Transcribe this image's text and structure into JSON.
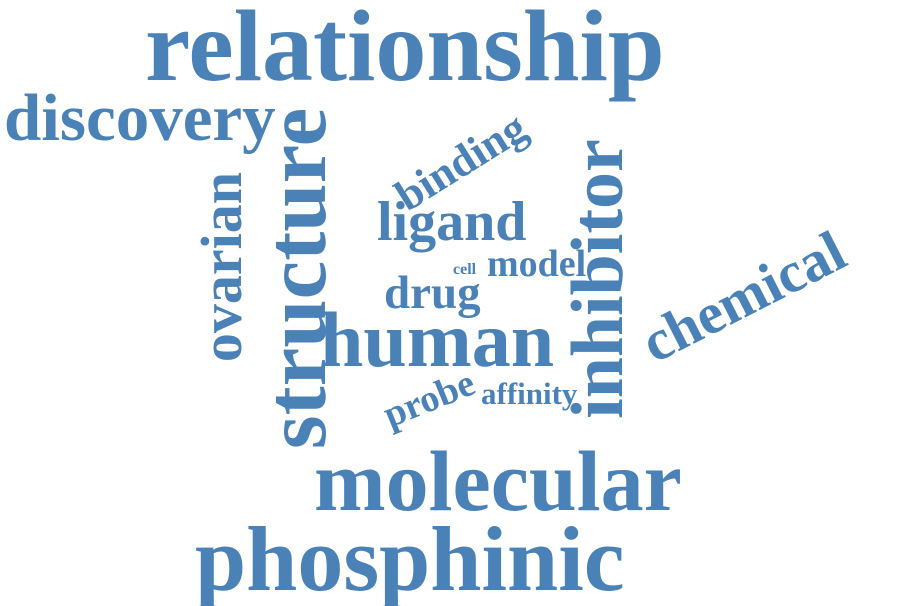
{
  "word_cloud": {
    "color": "#4a82b8",
    "words": {
      "relationship": "relationship",
      "discovery": "discovery",
      "structure": "structure",
      "ovarian": "ovarian",
      "inhibitor": "inhibitor",
      "binding": "binding",
      "chemical": "chemical",
      "ligand": "ligand",
      "cell": "cell",
      "model": "model",
      "drug": "drug",
      "human": "human",
      "probe": "probe",
      "affinity": "affinity",
      "molecular": "molecular",
      "phosphinic": "phosphinic"
    }
  }
}
